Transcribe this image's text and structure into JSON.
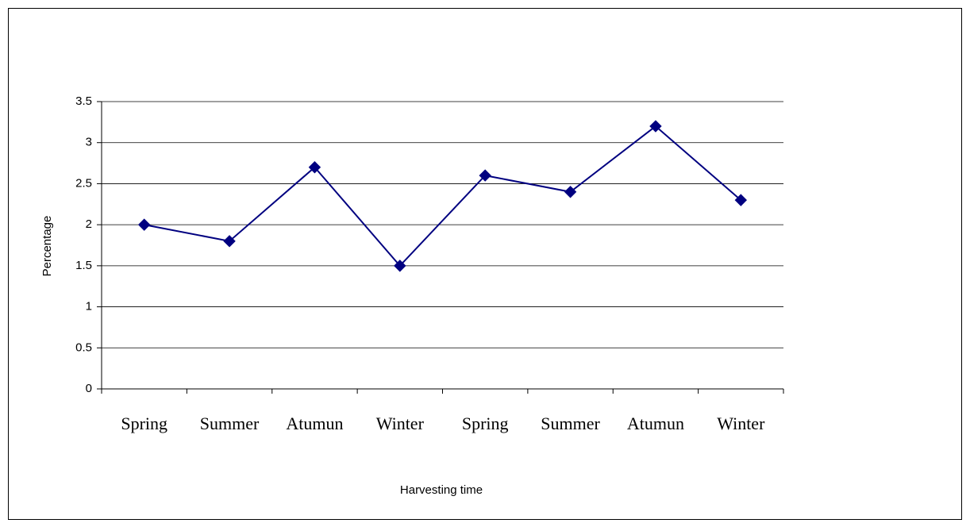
{
  "chart_data": {
    "type": "line",
    "x_label": "Harvesting time",
    "y_label": "Percentage",
    "categories": [
      "Spring",
      "Summer",
      "Atumun",
      "Winter",
      "Spring",
      "Summer",
      "Atumun",
      "Winter"
    ],
    "values": [
      2,
      1.8,
      2.7,
      1.5,
      2.6,
      2.4,
      3.2,
      2.3
    ],
    "color": "#000080",
    "marker": "diamond",
    "ylim": [
      0,
      3.5
    ],
    "yticks": [
      0,
      0.5,
      1,
      1.5,
      2,
      2.5,
      3,
      3.5
    ],
    "grid": true
  }
}
